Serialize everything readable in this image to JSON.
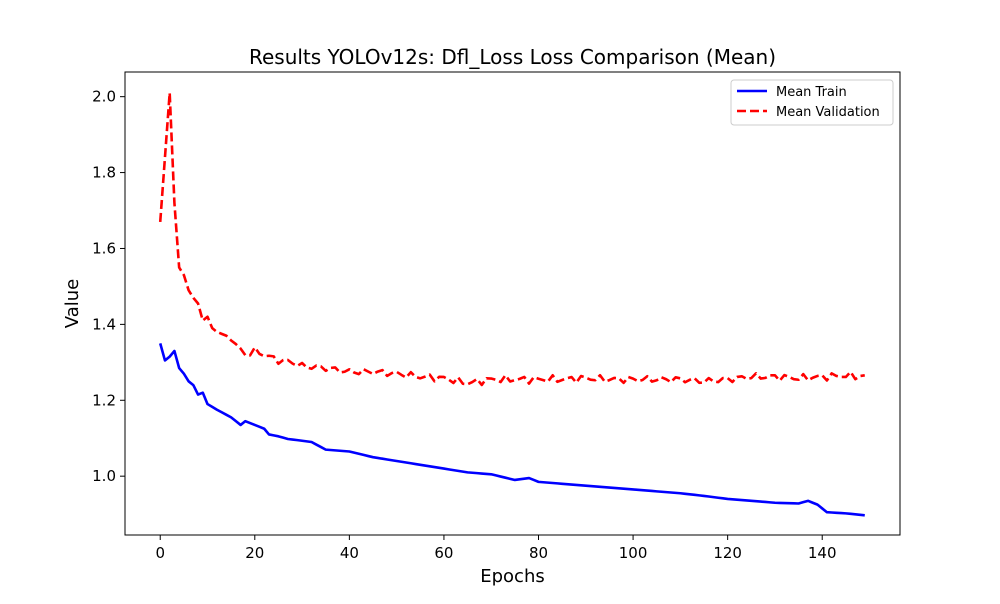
{
  "chart_data": {
    "type": "line",
    "title": "Results YOLOv12s: Dfl_Loss Loss Comparison (Mean)",
    "xlabel": "Epochs",
    "ylabel": "Value",
    "xlim": [
      -7.45,
      156.45
    ],
    "ylim": [
      0.845,
      2.065
    ],
    "xticks": [
      0,
      20,
      40,
      60,
      80,
      100,
      120,
      140
    ],
    "yticks": [
      1.0,
      1.2,
      1.4,
      1.6,
      1.8,
      2.0
    ],
    "xtick_labels": [
      "0",
      "20",
      "40",
      "60",
      "80",
      "100",
      "120",
      "140"
    ],
    "ytick_labels": [
      "1.0",
      "1.2",
      "1.4",
      "1.6",
      "1.8",
      "2.0"
    ],
    "grid": false,
    "legend_position": "top-right",
    "series": [
      {
        "name": "Mean Train",
        "color": "#0000ff",
        "line_style": "solid",
        "keyframes": [
          [
            0,
            1.35
          ],
          [
            1,
            1.305
          ],
          [
            2,
            1.315
          ],
          [
            3,
            1.33
          ],
          [
            4,
            1.285
          ],
          [
            5,
            1.27
          ],
          [
            6,
            1.25
          ],
          [
            7,
            1.24
          ],
          [
            8,
            1.215
          ],
          [
            9,
            1.22
          ],
          [
            10,
            1.19
          ],
          [
            12,
            1.175
          ],
          [
            15,
            1.155
          ],
          [
            17,
            1.135
          ],
          [
            18,
            1.145
          ],
          [
            20,
            1.135
          ],
          [
            22,
            1.125
          ],
          [
            23,
            1.11
          ],
          [
            25,
            1.105
          ],
          [
            27,
            1.098
          ],
          [
            29,
            1.095
          ],
          [
            32,
            1.09
          ],
          [
            35,
            1.07
          ],
          [
            40,
            1.065
          ],
          [
            45,
            1.05
          ],
          [
            50,
            1.04
          ],
          [
            55,
            1.03
          ],
          [
            60,
            1.02
          ],
          [
            65,
            1.01
          ],
          [
            70,
            1.005
          ],
          [
            75,
            0.99
          ],
          [
            78,
            0.995
          ],
          [
            80,
            0.985
          ],
          [
            85,
            0.98
          ],
          [
            90,
            0.975
          ],
          [
            95,
            0.97
          ],
          [
            100,
            0.965
          ],
          [
            105,
            0.96
          ],
          [
            110,
            0.955
          ],
          [
            115,
            0.948
          ],
          [
            120,
            0.94
          ],
          [
            125,
            0.935
          ],
          [
            130,
            0.93
          ],
          [
            135,
            0.928
          ],
          [
            137,
            0.935
          ],
          [
            139,
            0.925
          ],
          [
            141,
            0.905
          ],
          [
            145,
            0.902
          ],
          [
            149,
            0.897
          ]
        ]
      },
      {
        "name": "Mean Validation",
        "color": "#ff0000",
        "line_style": "dashed",
        "keyframes": [
          [
            0,
            1.67
          ],
          [
            1,
            1.84
          ],
          [
            2,
            2.01
          ],
          [
            3,
            1.72
          ],
          [
            4,
            1.55
          ],
          [
            5,
            1.53
          ],
          [
            6,
            1.49
          ],
          [
            7,
            1.47
          ],
          [
            8,
            1.455
          ],
          [
            9,
            1.41
          ],
          [
            10,
            1.42
          ],
          [
            11,
            1.39
          ],
          [
            12,
            1.38
          ],
          [
            14,
            1.37
          ],
          [
            16,
            1.345
          ],
          [
            18,
            1.32
          ],
          [
            20,
            1.33
          ],
          [
            22,
            1.32
          ],
          [
            25,
            1.305
          ],
          [
            28,
            1.3
          ],
          [
            30,
            1.29
          ],
          [
            35,
            1.285
          ],
          [
            40,
            1.275
          ],
          [
            45,
            1.275
          ],
          [
            50,
            1.27
          ],
          [
            55,
            1.262
          ],
          [
            60,
            1.258
          ],
          [
            65,
            1.245
          ],
          [
            70,
            1.255
          ],
          [
            75,
            1.255
          ],
          [
            80,
            1.255
          ],
          [
            85,
            1.255
          ],
          [
            90,
            1.258
          ],
          [
            95,
            1.255
          ],
          [
            100,
            1.255
          ],
          [
            105,
            1.255
          ],
          [
            110,
            1.255
          ],
          [
            115,
            1.25
          ],
          [
            120,
            1.255
          ],
          [
            125,
            1.262
          ],
          [
            130,
            1.262
          ],
          [
            135,
            1.258
          ],
          [
            140,
            1.262
          ],
          [
            145,
            1.265
          ],
          [
            149,
            1.263
          ]
        ],
        "jitter": 0.01
      }
    ]
  }
}
